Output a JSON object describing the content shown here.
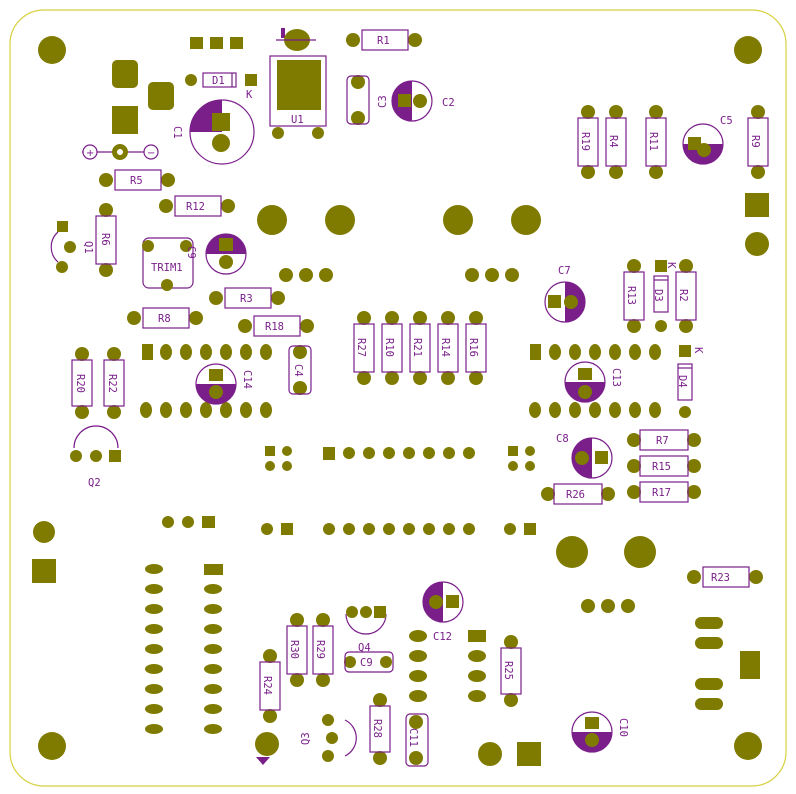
{
  "board": {
    "outline_color": "#d8d040",
    "pad_color": "#7f7a00",
    "silk_color": "#7a1f8a",
    "hole_color": "#7f7a00"
  },
  "labels": {
    "R1": "R1",
    "C2": "C2",
    "C3": "C3",
    "U1": "U1",
    "D1": "D1",
    "K_D1": "K",
    "C1": "C1",
    "R5": "R5",
    "R12": "R12",
    "R6": "R6",
    "Q1": "Q1",
    "TRIM1": "TRIM1",
    "C9_top": "C9",
    "R3": "R3",
    "R8": "R8",
    "R18": "R18",
    "C4": "C4",
    "R20": "R20",
    "R22": "R22",
    "C14": "C14",
    "R27": "R27",
    "R10": "R10",
    "R21": "R21",
    "R14": "R14",
    "R16": "R16",
    "R19": "R19",
    "R4": "R4",
    "R11": "R11",
    "C5": "C5",
    "R9": "R9",
    "C7": "C7",
    "R13": "R13",
    "D3": "D3",
    "R2": "R2",
    "K_D3": "K",
    "K_D4": "K",
    "D4": "D4",
    "C13": "C13",
    "C8": "C8",
    "R7": "R7",
    "R15": "R15",
    "R17": "R17",
    "R26": "R26",
    "Q2": "Q2",
    "R23": "R23",
    "C12": "C12",
    "Q4": "Q4",
    "R30": "R30",
    "R29": "R29",
    "C9": "C9",
    "R24": "R24",
    "R25": "R25",
    "R28": "R28",
    "C11": "C11",
    "Q3": "Q3",
    "C10": "C10",
    "plus": "+",
    "minus": "−"
  }
}
